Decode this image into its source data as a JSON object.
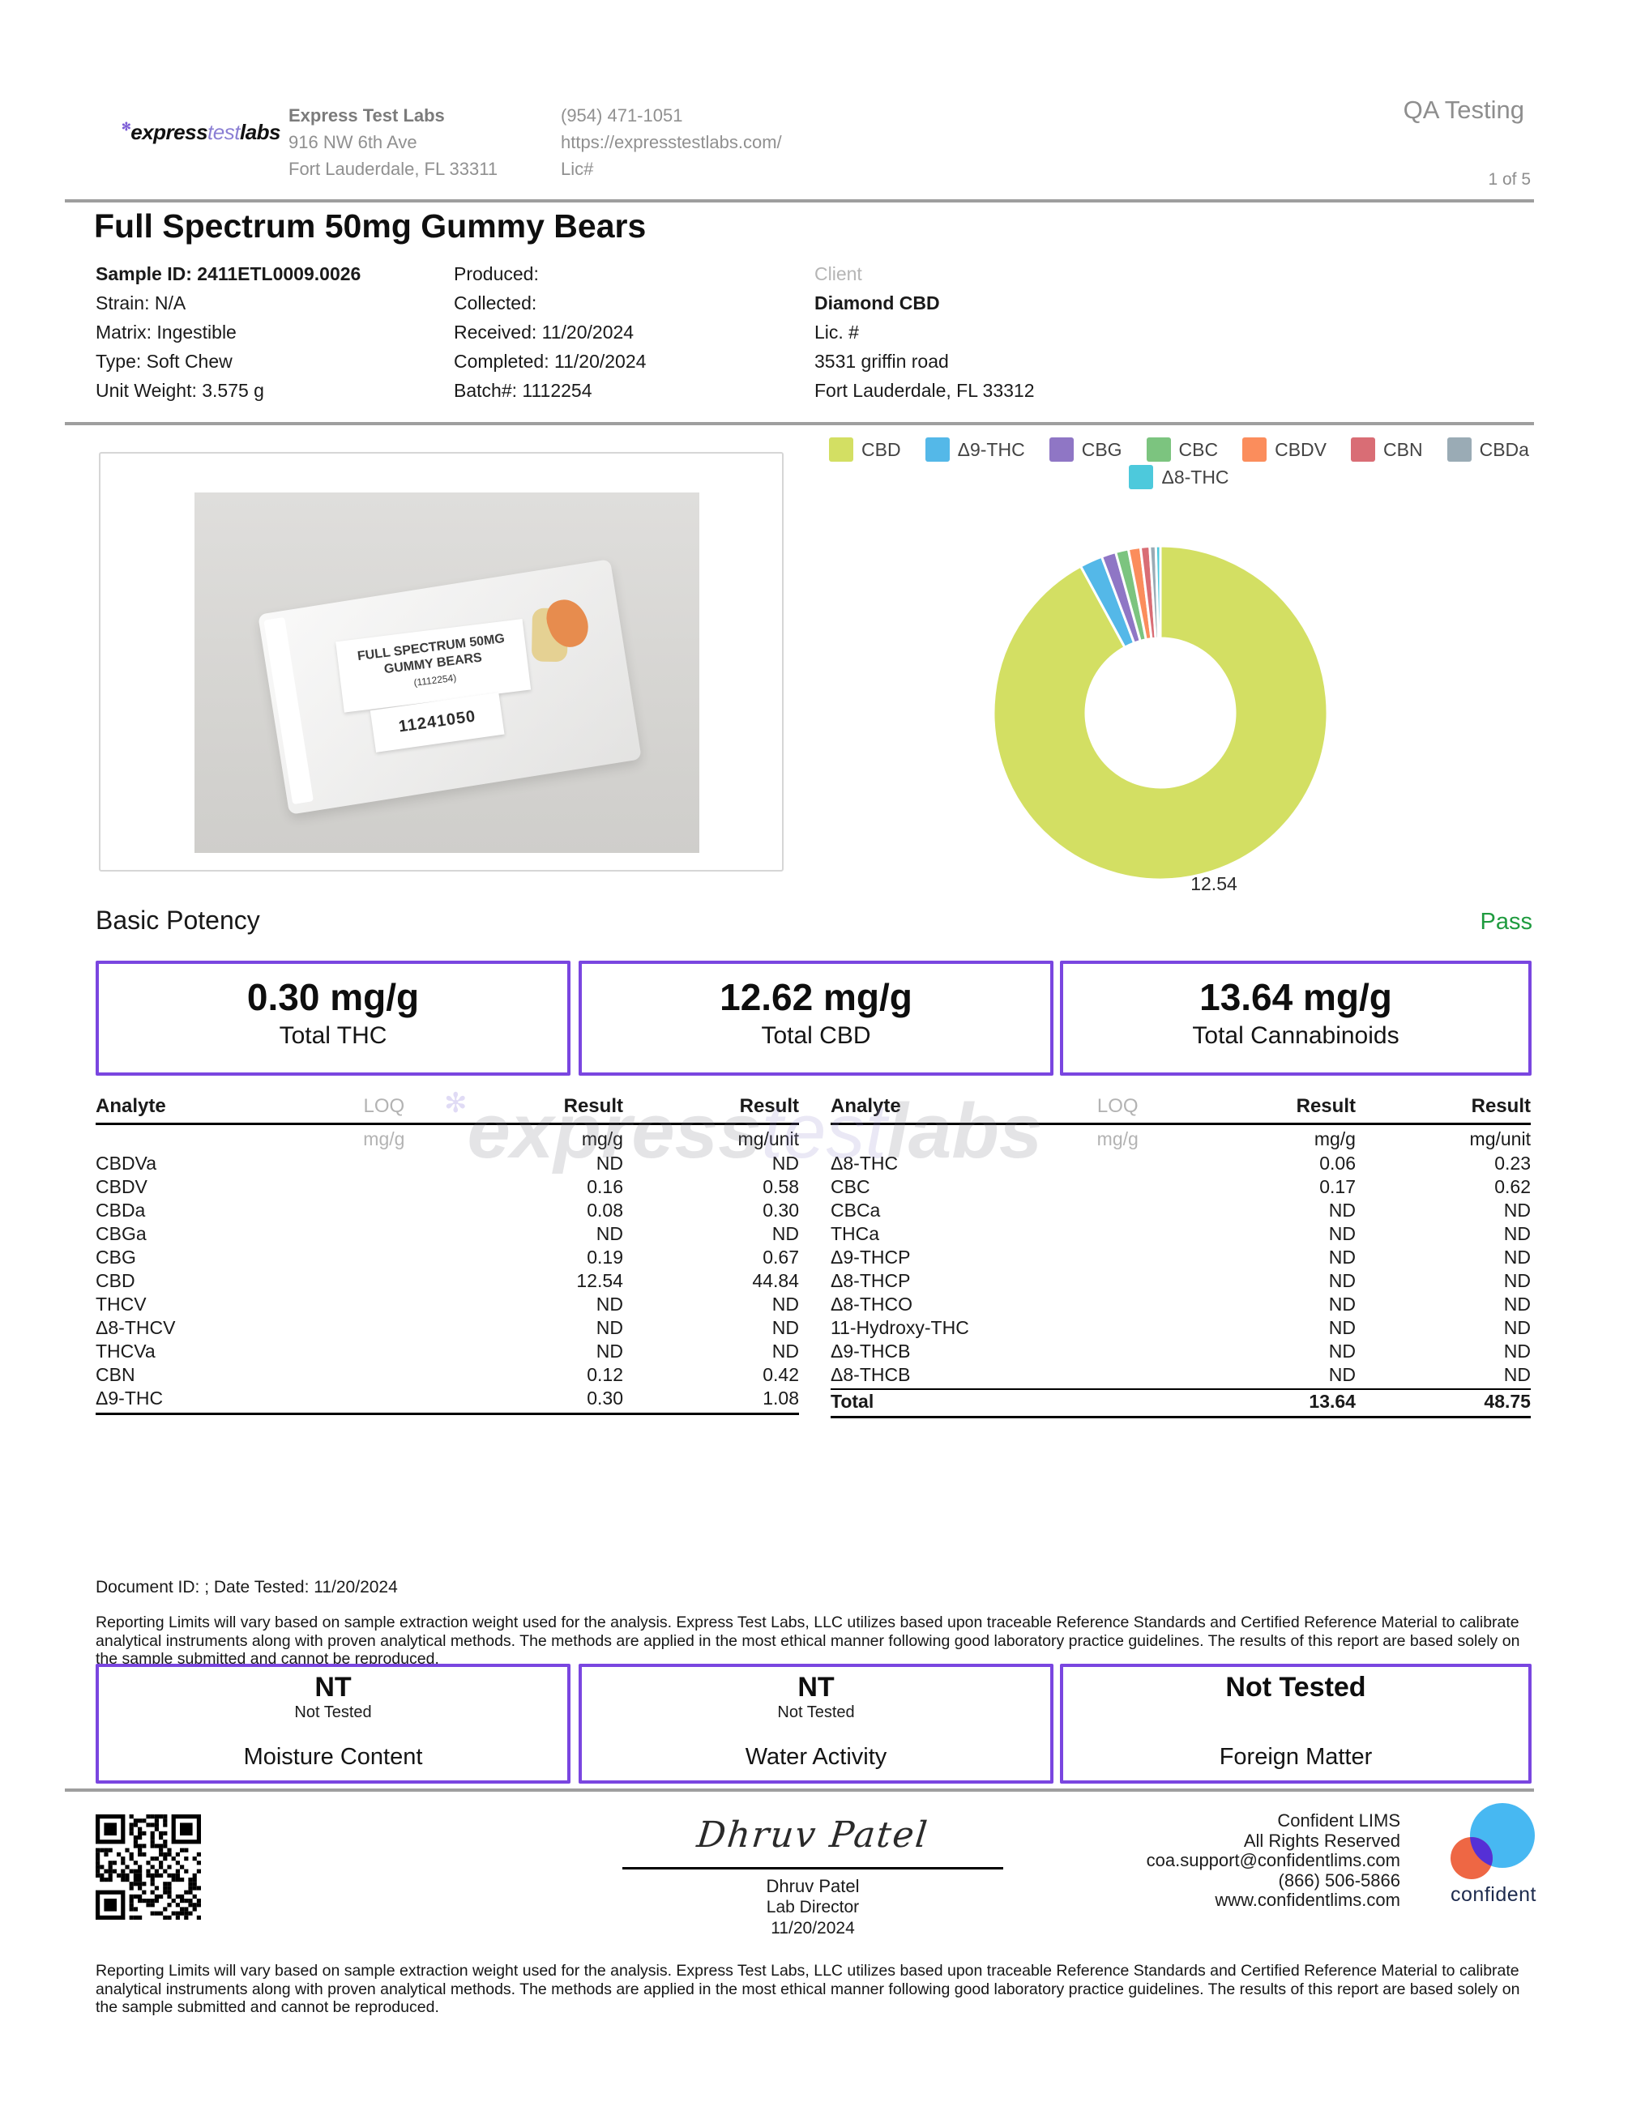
{
  "header": {
    "logo": {
      "mark": "✻",
      "express": "express",
      "test": "test",
      "labs": "labs"
    },
    "lab_name": "Express Test Labs",
    "address_line1": "916 NW 6th Ave",
    "address_line2": "Fort Lauderdale, FL 33311",
    "phone": "(954) 471-1051",
    "website": "https://expresstestlabs.com/",
    "license": "Lic#",
    "doc_type": "QA Testing",
    "page": "1 of 5"
  },
  "title": "Full Spectrum 50mg Gummy Bears",
  "sample": {
    "id": "Sample ID: 2411ETL0009.0026",
    "strain": "Strain: N/A",
    "matrix": "Matrix: Ingestible",
    "type": "Type: Soft Chew",
    "unit_weight": "Unit Weight: 3.575 g",
    "produced": "Produced:",
    "collected": "Collected:",
    "received": "Received: 11/20/2024",
    "completed": "Completed: 11/20/2024",
    "batch": "Batch#: 1112254",
    "client_label": "Client",
    "client_name": "Diamond CBD",
    "client_license": "Lic. #",
    "client_address1": "3531 griffin road",
    "client_address2": "Fort Lauderdale, FL 33312"
  },
  "photo": {
    "bag_label_line1": "FULL SPECTRUM 50MG",
    "bag_label_line2": "GUMMY BEARS",
    "bag_label_line3": "(1112254)",
    "bag_number": "11241050"
  },
  "chart_data": {
    "type": "pie",
    "donut": true,
    "units": "mg/g",
    "bottom_label": "12.54",
    "series": [
      {
        "name": "CBD",
        "value": 12.54,
        "color": "#d3df63"
      },
      {
        "name": "Δ9-THC",
        "value": 0.3,
        "color": "#54b8e8"
      },
      {
        "name": "CBG",
        "value": 0.19,
        "color": "#8f76c5"
      },
      {
        "name": "CBC",
        "value": 0.17,
        "color": "#7cc47f"
      },
      {
        "name": "CBDV",
        "value": 0.16,
        "color": "#fb8d5c"
      },
      {
        "name": "CBN",
        "value": 0.12,
        "color": "#d96d75"
      },
      {
        "name": "CBDa",
        "value": 0.08,
        "color": "#9aabb5"
      },
      {
        "name": "Δ8-THC",
        "value": 0.06,
        "color": "#4dc9dc"
      }
    ],
    "legend_rows": [
      [
        "CBD",
        "Δ9-THC",
        "CBG",
        "CBC",
        "CBDV",
        "CBN",
        "CBDa"
      ],
      [
        "Δ8-THC"
      ]
    ],
    "legend_position": "top",
    "title": ""
  },
  "potency": {
    "heading": "Basic Potency",
    "status": "Pass",
    "status_color": "#1f9b3f",
    "boxes": [
      {
        "value": "0.30 mg/g",
        "label": "Total THC"
      },
      {
        "value": "12.62 mg/g",
        "label": "Total CBD"
      },
      {
        "value": "13.64 mg/g",
        "label": "Total Cannabinoids"
      }
    ]
  },
  "analyte_tables": {
    "headers": {
      "analyte": "Analyte",
      "loq": "LOQ",
      "result1": "Result",
      "result2": "Result"
    },
    "units": {
      "loq": "mg/g",
      "result1": "mg/g",
      "result2": "mg/unit"
    },
    "left_rows": [
      [
        "CBDVa",
        "ND",
        "ND"
      ],
      [
        "CBDV",
        "0.16",
        "0.58"
      ],
      [
        "CBDa",
        "0.08",
        "0.30"
      ],
      [
        "CBGa",
        "ND",
        "ND"
      ],
      [
        "CBG",
        "0.19",
        "0.67"
      ],
      [
        "CBD",
        "12.54",
        "44.84"
      ],
      [
        "THCV",
        "ND",
        "ND"
      ],
      [
        "Δ8-THCV",
        "ND",
        "ND"
      ],
      [
        "THCVa",
        "ND",
        "ND"
      ],
      [
        "CBN",
        "0.12",
        "0.42"
      ],
      [
        "Δ9-THC",
        "0.30",
        "1.08"
      ]
    ],
    "right_rows": [
      [
        "Δ8-THC",
        "0.06",
        "0.23"
      ],
      [
        "CBC",
        "0.17",
        "0.62"
      ],
      [
        "CBCa",
        "ND",
        "ND"
      ],
      [
        "THCa",
        "ND",
        "ND"
      ],
      [
        "Δ9-THCP",
        "ND",
        "ND"
      ],
      [
        "Δ8-THCP",
        "ND",
        "ND"
      ],
      [
        "Δ8-THCO",
        "ND",
        "ND"
      ],
      [
        "11-Hydroxy-THC",
        "ND",
        "ND"
      ],
      [
        "Δ9-THCB",
        "ND",
        "ND"
      ],
      [
        "Δ8-THCB",
        "ND",
        "ND"
      ]
    ],
    "total_row": [
      "Total",
      "13.64",
      "48.75"
    ]
  },
  "watermark": {
    "mark": "✻",
    "express": "express",
    "test": "test",
    "labs": "labs"
  },
  "footer": {
    "document_line": "Document ID: ; Date Tested: 11/20/2024",
    "disclaimer": "Reporting Limits will vary based on sample extraction weight used for the analysis. Express Test Labs, LLC utilizes based upon traceable Reference Standards and Certified Reference Material to calibrate analytical instruments along with proven analytical methods. The methods are applied in the most ethical manner following good laboratory practice guidelines. The results of this report are based solely on the sample submitted and cannot be reproduced.",
    "nt_boxes": [
      {
        "big": "NT",
        "small": "Not Tested",
        "label": "Moisture Content"
      },
      {
        "big": "NT",
        "small": "Not Tested",
        "label": "Water Activity"
      },
      {
        "big": "Not Tested",
        "small": "",
        "label": "Foreign Matter"
      }
    ],
    "signature": {
      "script": "Dhruv Patel",
      "name": "Dhruv Patel",
      "role": "Lab Director",
      "date": "11/20/2024"
    },
    "lims": {
      "line1": "Confident LIMS",
      "line2": "All Rights Reserved",
      "email": "coa.support@confidentlims.com",
      "phone": "(866) 506-5866",
      "website": "www.confidentlims.com",
      "brand": "confident"
    }
  }
}
